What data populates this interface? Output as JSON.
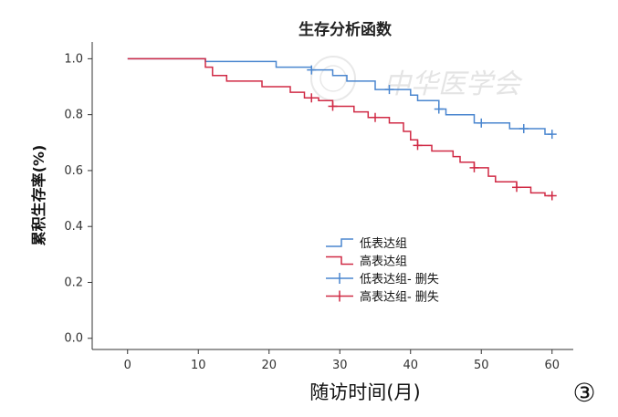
{
  "chart_data": {
    "type": "line",
    "title": "生存分析函数",
    "xlabel": "随访时间(月)",
    "ylabel": "累积生存率(%)",
    "xlim": [
      -5,
      63
    ],
    "ylim": [
      -0.04,
      1.06
    ],
    "x_ticks": [
      "0",
      "10",
      "20",
      "30",
      "40",
      "50",
      "60"
    ],
    "y_ticks": [
      "0.0",
      "0.2",
      "0.4",
      "0.6",
      "0.8",
      "1.0"
    ],
    "legend_position": "center",
    "panel_label": "③",
    "series": [
      {
        "name": "低表达组",
        "color": "#4a86cf",
        "steps": [
          [
            0,
            1.0
          ],
          [
            11,
            1.0
          ],
          [
            11,
            0.99
          ],
          [
            21,
            0.99
          ],
          [
            21,
            0.97
          ],
          [
            26,
            0.97
          ],
          [
            26,
            0.96
          ],
          [
            29,
            0.96
          ],
          [
            29,
            0.94
          ],
          [
            31,
            0.94
          ],
          [
            31,
            0.92
          ],
          [
            35,
            0.92
          ],
          [
            35,
            0.89
          ],
          [
            40,
            0.89
          ],
          [
            40,
            0.87
          ],
          [
            41,
            0.87
          ],
          [
            41,
            0.85
          ],
          [
            44,
            0.85
          ],
          [
            44,
            0.82
          ],
          [
            45,
            0.82
          ],
          [
            45,
            0.8
          ],
          [
            49,
            0.8
          ],
          [
            49,
            0.77
          ],
          [
            54,
            0.77
          ],
          [
            54,
            0.75
          ],
          [
            59,
            0.75
          ],
          [
            59,
            0.73
          ],
          [
            60,
            0.73
          ]
        ]
      },
      {
        "name": "高表达组",
        "color": "#d02a45",
        "steps": [
          [
            0,
            1.0
          ],
          [
            11,
            1.0
          ],
          [
            11,
            0.97
          ],
          [
            12,
            0.97
          ],
          [
            12,
            0.94
          ],
          [
            14,
            0.94
          ],
          [
            14,
            0.92
          ],
          [
            19,
            0.92
          ],
          [
            19,
            0.9
          ],
          [
            23,
            0.9
          ],
          [
            23,
            0.88
          ],
          [
            25,
            0.88
          ],
          [
            25,
            0.86
          ],
          [
            27,
            0.86
          ],
          [
            27,
            0.85
          ],
          [
            29,
            0.85
          ],
          [
            29,
            0.83
          ],
          [
            32,
            0.83
          ],
          [
            32,
            0.81
          ],
          [
            34,
            0.81
          ],
          [
            34,
            0.79
          ],
          [
            37,
            0.79
          ],
          [
            37,
            0.77
          ],
          [
            39,
            0.77
          ],
          [
            39,
            0.74
          ],
          [
            40,
            0.74
          ],
          [
            40,
            0.71
          ],
          [
            41,
            0.71
          ],
          [
            41,
            0.69
          ],
          [
            43,
            0.69
          ],
          [
            43,
            0.67
          ],
          [
            46,
            0.67
          ],
          [
            46,
            0.65
          ],
          [
            47,
            0.65
          ],
          [
            47,
            0.63
          ],
          [
            49,
            0.63
          ],
          [
            49,
            0.61
          ],
          [
            51,
            0.61
          ],
          [
            51,
            0.58
          ],
          [
            52,
            0.58
          ],
          [
            52,
            0.56
          ],
          [
            55,
            0.56
          ],
          [
            55,
            0.54
          ],
          [
            57,
            0.54
          ],
          [
            57,
            0.52
          ],
          [
            59,
            0.52
          ],
          [
            59,
            0.51
          ],
          [
            60,
            0.51
          ]
        ]
      },
      {
        "name": "低表达组- 删失",
        "color": "#4a86cf",
        "censored": [
          [
            26,
            0.96
          ],
          [
            37,
            0.89
          ],
          [
            44,
            0.82
          ],
          [
            50,
            0.77
          ],
          [
            56,
            0.75
          ],
          [
            60,
            0.73
          ]
        ]
      },
      {
        "name": "高表达组- 删失",
        "color": "#d02a45",
        "censored": [
          [
            26,
            0.86
          ],
          [
            29,
            0.83
          ],
          [
            35,
            0.79
          ],
          [
            41,
            0.69
          ],
          [
            49,
            0.61
          ],
          [
            55,
            0.54
          ],
          [
            60,
            0.51
          ]
        ]
      }
    ]
  },
  "watermark": "中华医学会"
}
